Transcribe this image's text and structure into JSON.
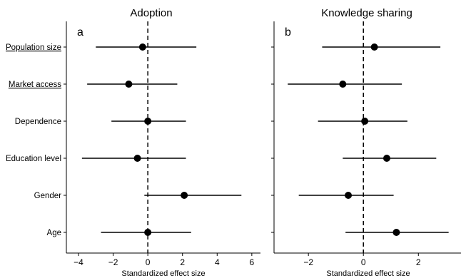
{
  "chart_data": [
    {
      "type": "forest",
      "panel_label": "a",
      "title": "Adoption",
      "xlabel": "Standardized effect size",
      "xlim": [
        -4.7,
        6.5
      ],
      "xticks": [
        -4,
        -2,
        0,
        2,
        4,
        6
      ],
      "xtick_labels": [
        "−4",
        "−2",
        "0",
        "2",
        "4",
        "6"
      ],
      "reference_line": 0,
      "categories": [
        "Population size",
        "Market access",
        "Dependence",
        "Education level",
        "Gender",
        "Age"
      ],
      "underlined": [
        true,
        true,
        false,
        false,
        false,
        false
      ],
      "estimates": [
        -0.3,
        -1.1,
        0.0,
        -0.6,
        2.1,
        0.0
      ],
      "ci_low": [
        -3.0,
        -3.5,
        -2.1,
        -3.8,
        -0.2,
        -2.7
      ],
      "ci_high": [
        2.8,
        1.7,
        2.2,
        2.2,
        5.4,
        2.5
      ]
    },
    {
      "type": "forest",
      "panel_label": "b",
      "title": "Knowledge sharing",
      "xlabel": "Standardized effect size",
      "xlim": [
        -3.25,
        3.55
      ],
      "xticks": [
        -2,
        0,
        2
      ],
      "xtick_labels": [
        "−2",
        "0",
        "2"
      ],
      "reference_line": 0,
      "categories": [
        "Population size",
        "Market access",
        "Dependence",
        "Education level",
        "Gender",
        "Age"
      ],
      "estimates": [
        0.4,
        -0.75,
        0.05,
        0.85,
        -0.55,
        1.2
      ],
      "ci_low": [
        -1.5,
        -2.75,
        -1.65,
        -0.75,
        -2.35,
        -0.65
      ],
      "ci_high": [
        2.8,
        1.4,
        1.6,
        2.65,
        1.1,
        3.1
      ]
    }
  ]
}
